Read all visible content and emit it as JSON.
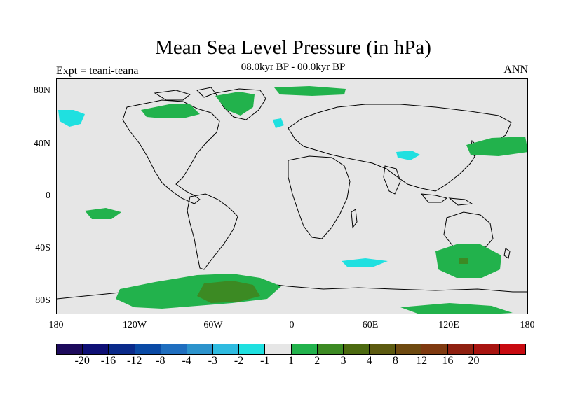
{
  "title": "Mean Sea Level Pressure (in hPa)",
  "subtitle": "08.0kyr BP - 00.0kyr BP",
  "left_label": "Expt = teani-teana",
  "right_label": "ANN",
  "lat_labels": [
    "80N",
    "40N",
    "0",
    "40S",
    "80S"
  ],
  "lon_labels": [
    "180",
    "120W",
    "60W",
    "0",
    "60E",
    "120E",
    "180"
  ],
  "colorbar": {
    "colors": [
      "#1d0a5c",
      "#0e0f75",
      "#0a2a8a",
      "#0a4aa5",
      "#1f6ebf",
      "#2c93cc",
      "#2fbbe0",
      "#1fe0e0",
      "#e6e6e6",
      "#22b24c",
      "#3c8a23",
      "#4c6a10",
      "#5c5a10",
      "#6e4a10",
      "#7f3a10",
      "#8f2010",
      "#a81410",
      "#c80a10"
    ],
    "labels": [
      "-20",
      "-16",
      "-12",
      "-8",
      "-4",
      "-3",
      "-2",
      "-1",
      "1",
      "2",
      "3",
      "4",
      "8",
      "12",
      "16",
      "20"
    ]
  },
  "fill_colors": {
    "background": "#e6e6e6",
    "pos_1": "#22b24c",
    "pos_2": "#3c8a23",
    "pos_3": "#4c6a10",
    "neg_1": "#1fe0e0",
    "neg_2": "#2fbbe0"
  }
}
